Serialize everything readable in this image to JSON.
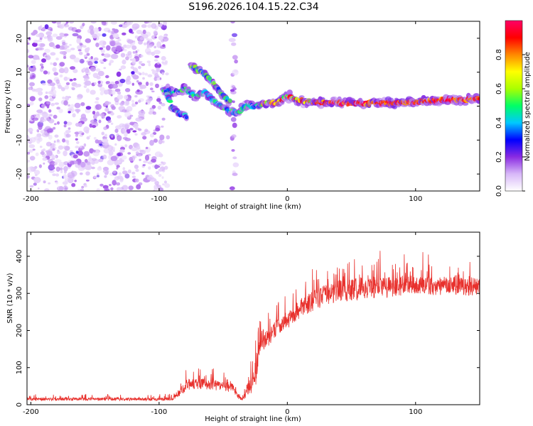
{
  "title": "S196.2026.104.15.22.C34",
  "colors": {
    "snr_line": "#e8302c",
    "colormap": [
      "#ffffff",
      "#d8b8f8",
      "#8a2be2",
      "#0000ff",
      "#00c8ff",
      "#00ff66",
      "#aaff00",
      "#ffff00",
      "#ff8800",
      "#ff0000",
      "#ff0066"
    ]
  },
  "chart_data": [
    {
      "type": "heatmap",
      "name": "spectrogram",
      "xlabel": "Height of straight line (km)",
      "ylabel": "Frequency (Hz)",
      "xlim": [
        -203,
        150
      ],
      "ylim": [
        -25,
        25
      ],
      "xticks": [
        -200,
        -100,
        0,
        100
      ],
      "yticks": [
        -20,
        -10,
        0,
        10,
        20
      ],
      "colorbar": {
        "label": "Normalized spectral amplitude",
        "range": [
          0.0,
          1.0
        ],
        "ticks": [
          "0.0",
          "0.2",
          "0.4",
          "0.6",
          "0.8"
        ]
      },
      "features": [
        {
          "description": "broadband noise",
          "x_range": [
            -203,
            -93
          ],
          "f_range": [
            -25,
            25
          ],
          "amplitude": 0.15
        },
        {
          "description": "noise stripe",
          "x_range": [
            -43,
            -40
          ],
          "f_range": [
            -25,
            25
          ],
          "amplitude": 0.15
        },
        {
          "description": "main trace",
          "points": [
            [
              -97,
              5
            ],
            [
              -88,
              4
            ],
            [
              -80,
              5
            ],
            [
              -72,
              3
            ],
            [
              -64,
              4
            ],
            [
              -56,
              1
            ],
            [
              -48,
              -1
            ],
            [
              -40,
              -2
            ],
            [
              -32,
              0
            ],
            [
              -24,
              0
            ],
            [
              -16,
              1
            ],
            [
              -8,
              1
            ],
            [
              0,
              3
            ],
            [
              10,
              1.5
            ],
            [
              30,
              1
            ],
            [
              60,
              0.8
            ],
            [
              90,
              1
            ],
            [
              120,
              1.8
            ],
            [
              150,
              2
            ]
          ]
        },
        {
          "description": "upper branch",
          "points": [
            [
              -75,
              12
            ],
            [
              -66,
              10
            ],
            [
              -58,
              7
            ],
            [
              -50,
              3
            ],
            [
              -44,
              1
            ]
          ]
        },
        {
          "description": "lower branch",
          "points": [
            [
              -95,
              4
            ],
            [
              -90,
              0
            ],
            [
              -85,
              -2
            ],
            [
              -78,
              -3
            ]
          ]
        }
      ]
    },
    {
      "type": "line",
      "name": "snr",
      "xlabel": "Height of straight line (km)",
      "ylabel": "SNR (10 * v/v)",
      "xlim": [
        -203,
        150
      ],
      "ylim": [
        0,
        465
      ],
      "xticks": [
        -200,
        -100,
        0,
        100
      ],
      "yticks": [
        0,
        100,
        200,
        300,
        400
      ],
      "series": [
        {
          "name": "SNR",
          "envelope_x": [
            -203,
            -90,
            -82,
            -78,
            -70,
            -60,
            -50,
            -43,
            -38,
            -35,
            -30,
            -25,
            -20,
            -15,
            -10,
            -5,
            0,
            5,
            10,
            20,
            30,
            40,
            50,
            60,
            70,
            80,
            90,
            100,
            110,
            120,
            130,
            140,
            150
          ],
          "baseline": [
            15,
            15,
            40,
            55,
            55,
            55,
            50,
            45,
            20,
            15,
            40,
            80,
            170,
            180,
            200,
            215,
            225,
            240,
            260,
            280,
            295,
            305,
            310,
            315,
            315,
            318,
            322,
            325,
            320,
            318,
            320,
            318,
            320
          ],
          "spread": [
            8,
            8,
            25,
            30,
            30,
            30,
            28,
            25,
            10,
            8,
            40,
            70,
            60,
            45,
            45,
            45,
            45,
            45,
            50,
            55,
            55,
            60,
            60,
            60,
            60,
            55,
            55,
            50,
            50,
            50,
            50,
            50,
            50
          ]
        }
      ]
    }
  ]
}
